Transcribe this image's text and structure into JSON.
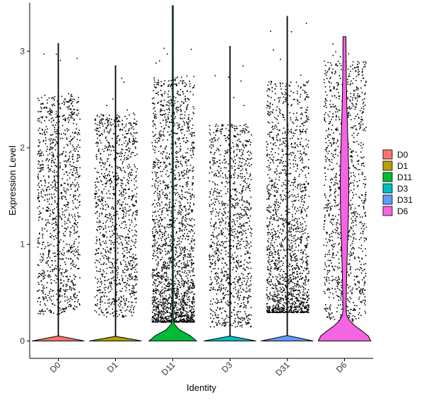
{
  "chart_data": {
    "type": "violin",
    "xlabel": "Identity",
    "ylabel": "Expression Level",
    "categories": [
      "D0",
      "D1",
      "D11",
      "D3",
      "D31",
      "D6"
    ],
    "ylim": [
      -0.18,
      3.5
    ],
    "yticks": [
      0,
      1,
      2,
      3
    ],
    "grid": false,
    "legend": {
      "position": "right",
      "entries": [
        {
          "label": "D0",
          "color": "#F8766D"
        },
        {
          "label": "D1",
          "color": "#B79F00"
        },
        {
          "label": "D11",
          "color": "#00BA38"
        },
        {
          "label": "D3",
          "color": "#00BFC4"
        },
        {
          "label": "D31",
          "color": "#619CFF"
        },
        {
          "label": "D6",
          "color": "#F564E3"
        }
      ]
    },
    "series": [
      {
        "category": "D0",
        "fill_color": "#F8766D",
        "max": 3.08,
        "dot_range": [
          0.28,
          2.55
        ],
        "fraction_zero": 0.98,
        "violin_width": 0.02
      },
      {
        "category": "D1",
        "fill_color": "#B79F00",
        "max": 2.85,
        "dot_range": [
          0.25,
          2.35
        ],
        "fraction_zero": 0.98,
        "violin_width": 0.02
      },
      {
        "category": "D11",
        "fill_color": "#00BA38",
        "max": 3.47,
        "dot_range": [
          0.2,
          2.75
        ],
        "fraction_zero": 0.9,
        "violin_width": 0.18
      },
      {
        "category": "D3",
        "fill_color": "#00BFC4",
        "max": 3.05,
        "dot_range": [
          0.15,
          2.25
        ],
        "fraction_zero": 0.98,
        "violin_width": 0.02
      },
      {
        "category": "D31",
        "fill_color": "#619CFF",
        "max": 3.36,
        "dot_range": [
          0.3,
          2.7
        ],
        "fraction_zero": 0.98,
        "violin_width": 0.02
      },
      {
        "category": "D6",
        "fill_color": "#F564E3",
        "max": 3.15,
        "dot_range": [
          0.2,
          2.9
        ],
        "fraction_zero": 0.75,
        "violin_width": 0.42
      }
    ]
  }
}
